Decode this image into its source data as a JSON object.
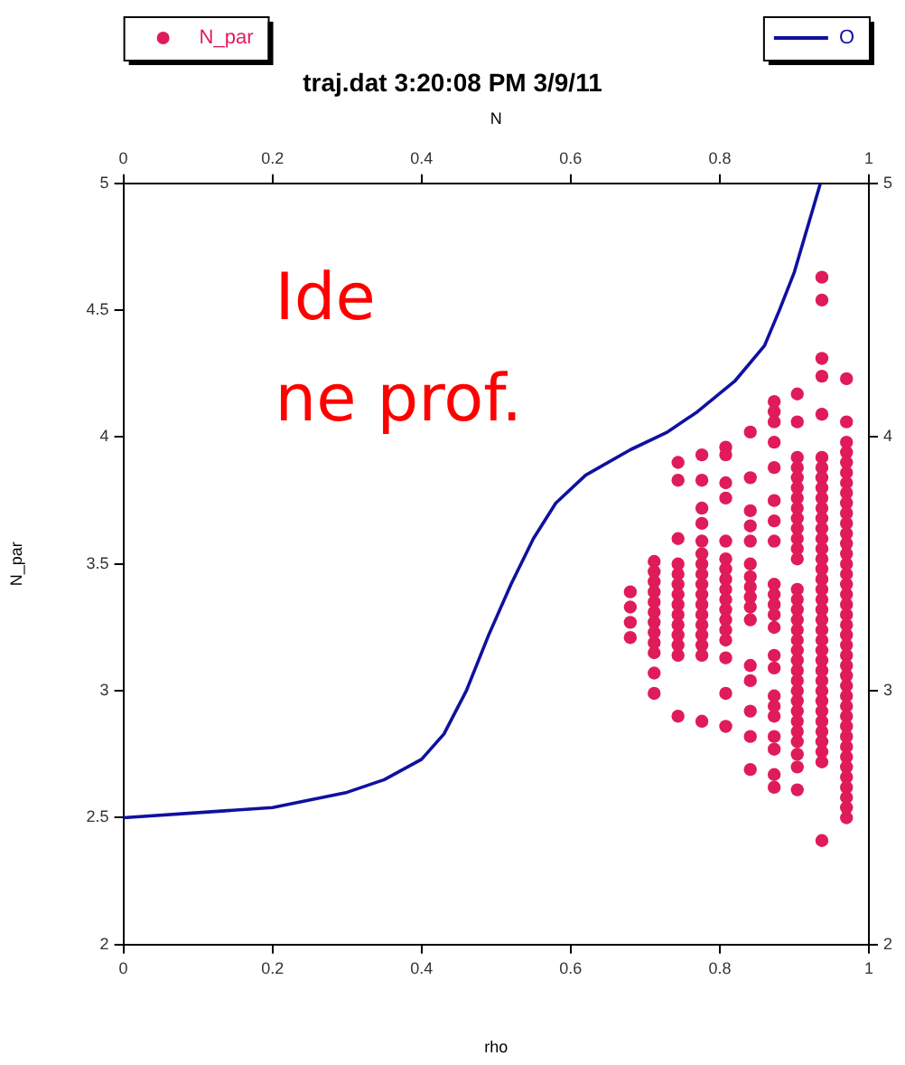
{
  "chart_data": {
    "type": "scatter",
    "title": "traj.dat 3:20:08 PM 3/9/11",
    "xlabel": "rho",
    "x2label": "N",
    "ylabel": "N_par",
    "xlim": [
      0,
      1
    ],
    "xticks": [
      0,
      0.2,
      0.4,
      0.6,
      0.8,
      1
    ],
    "x2lim": [
      0,
      1
    ],
    "x2ticks": [
      0,
      0.2,
      0.4,
      0.6,
      0.8,
      1
    ],
    "ylim": [
      2,
      5
    ],
    "yticks": [
      2,
      2.5,
      3,
      3.5,
      4,
      4.5,
      5
    ],
    "y2lim": [
      2,
      5
    ],
    "y2ticks": [
      2,
      3,
      4,
      5
    ],
    "grid": false,
    "legend": "top",
    "annotations": [
      "Ide",
      "ne prof."
    ],
    "series": [
      {
        "type": "scatter",
        "name": "N_par",
        "color": "#e01b5a",
        "marker": "circle",
        "x": [
          0.68,
          0.68,
          0.68,
          0.68,
          0.712,
          0.712,
          0.712,
          0.712,
          0.712,
          0.712,
          0.712,
          0.712,
          0.712,
          0.712,
          0.712,
          0.712,
          0.744,
          0.744,
          0.744,
          0.744,
          0.744,
          0.744,
          0.744,
          0.744,
          0.744,
          0.744,
          0.744,
          0.744,
          0.744,
          0.744,
          0.776,
          0.776,
          0.776,
          0.776,
          0.776,
          0.776,
          0.776,
          0.776,
          0.776,
          0.776,
          0.776,
          0.776,
          0.776,
          0.776,
          0.776,
          0.776,
          0.776,
          0.808,
          0.808,
          0.808,
          0.808,
          0.808,
          0.808,
          0.808,
          0.808,
          0.808,
          0.808,
          0.808,
          0.808,
          0.808,
          0.808,
          0.808,
          0.808,
          0.808,
          0.841,
          0.841,
          0.841,
          0.841,
          0.841,
          0.841,
          0.841,
          0.841,
          0.841,
          0.841,
          0.841,
          0.841,
          0.841,
          0.841,
          0.841,
          0.841,
          0.873,
          0.873,
          0.873,
          0.873,
          0.873,
          0.873,
          0.873,
          0.873,
          0.873,
          0.873,
          0.873,
          0.873,
          0.873,
          0.873,
          0.873,
          0.873,
          0.873,
          0.873,
          0.873,
          0.873,
          0.873,
          0.873,
          0.904,
          0.904,
          0.904,
          0.904,
          0.904,
          0.904,
          0.904,
          0.904,
          0.904,
          0.904,
          0.904,
          0.904,
          0.904,
          0.904,
          0.904,
          0.904,
          0.904,
          0.904,
          0.904,
          0.904,
          0.904,
          0.904,
          0.904,
          0.904,
          0.904,
          0.904,
          0.904,
          0.904,
          0.904,
          0.904,
          0.904,
          0.904,
          0.937,
          0.937,
          0.937,
          0.937,
          0.937,
          0.937,
          0.937,
          0.937,
          0.937,
          0.937,
          0.937,
          0.937,
          0.937,
          0.937,
          0.937,
          0.937,
          0.937,
          0.937,
          0.937,
          0.937,
          0.937,
          0.937,
          0.937,
          0.937,
          0.937,
          0.937,
          0.937,
          0.937,
          0.937,
          0.937,
          0.937,
          0.937,
          0.937,
          0.937,
          0.937,
          0.937,
          0.937,
          0.97,
          0.97,
          0.97,
          0.97,
          0.97,
          0.97,
          0.97,
          0.97,
          0.97,
          0.97,
          0.97,
          0.97,
          0.97,
          0.97,
          0.97,
          0.97,
          0.97,
          0.97,
          0.97,
          0.97,
          0.97,
          0.97,
          0.97,
          0.97,
          0.97,
          0.97,
          0.97,
          0.97,
          0.97,
          0.97,
          0.97,
          0.97,
          0.97,
          0.97,
          0.97,
          0.97,
          0.97,
          0.97,
          0.97,
          0.97
        ],
        "values": [
          3.39,
          3.33,
          3.27,
          3.21,
          3.51,
          3.47,
          3.43,
          3.39,
          3.35,
          3.31,
          3.27,
          3.23,
          3.19,
          3.15,
          3.07,
          2.99,
          3.9,
          3.83,
          3.6,
          3.5,
          3.46,
          3.42,
          3.38,
          3.34,
          3.3,
          3.26,
          3.22,
          3.18,
          3.14,
          2.9,
          3.93,
          3.83,
          3.72,
          3.66,
          3.59,
          3.54,
          3.5,
          3.46,
          3.42,
          3.38,
          3.34,
          3.3,
          3.26,
          3.22,
          3.18,
          3.14,
          2.88,
          3.96,
          3.93,
          3.82,
          3.76,
          3.59,
          3.52,
          3.48,
          3.44,
          3.4,
          3.36,
          3.32,
          3.28,
          3.24,
          3.2,
          3.13,
          2.99,
          2.86,
          4.02,
          3.84,
          3.71,
          3.65,
          3.59,
          3.5,
          3.45,
          3.41,
          3.37,
          3.33,
          3.28,
          3.1,
          3.04,
          2.92,
          2.82,
          2.69,
          4.14,
          4.1,
          4.06,
          3.98,
          3.88,
          3.75,
          3.67,
          3.59,
          3.42,
          3.38,
          3.34,
          3.3,
          3.25,
          3.14,
          3.09,
          2.98,
          2.94,
          2.9,
          2.82,
          2.77,
          2.67,
          2.62,
          4.17,
          4.06,
          3.92,
          3.88,
          3.84,
          3.8,
          3.76,
          3.72,
          3.68,
          3.64,
          3.6,
          3.56,
          3.52,
          3.4,
          3.36,
          3.32,
          3.28,
          3.24,
          3.2,
          3.16,
          3.12,
          3.08,
          3.04,
          3.0,
          2.96,
          2.92,
          2.88,
          2.84,
          2.8,
          2.75,
          2.7,
          2.61,
          4.63,
          4.54,
          4.31,
          4.24,
          4.09,
          3.92,
          3.88,
          3.84,
          3.8,
          3.76,
          3.72,
          3.68,
          3.64,
          3.6,
          3.56,
          3.52,
          3.48,
          3.44,
          3.4,
          3.36,
          3.32,
          3.28,
          3.24,
          3.2,
          3.16,
          3.12,
          3.08,
          3.04,
          3.0,
          2.96,
          2.92,
          2.88,
          2.84,
          2.8,
          2.76,
          2.72,
          2.41,
          4.23,
          4.06,
          3.98,
          3.94,
          3.9,
          3.86,
          3.82,
          3.78,
          3.74,
          3.7,
          3.66,
          3.62,
          3.58,
          3.54,
          3.5,
          3.46,
          3.42,
          3.38,
          3.34,
          3.3,
          3.26,
          3.22,
          3.18,
          3.14,
          3.1,
          3.06,
          3.02,
          2.98,
          2.94,
          2.9,
          2.86,
          2.82,
          2.78,
          2.74,
          2.7,
          2.66,
          2.62,
          2.58,
          2.54,
          2.5
        ]
      },
      {
        "type": "line",
        "name": "O",
        "color": "#1010a0",
        "marker": "none",
        "line_style": "solid",
        "x": [
          0,
          0.1,
          0.2,
          0.3,
          0.35,
          0.4,
          0.43,
          0.46,
          0.49,
          0.52,
          0.55,
          0.58,
          0.62,
          0.68,
          0.73,
          0.77,
          0.82,
          0.86,
          0.88,
          0.9,
          0.92,
          0.935
        ],
        "values": [
          2.5,
          2.52,
          2.54,
          2.6,
          2.65,
          2.73,
          2.83,
          3.0,
          3.22,
          3.42,
          3.6,
          3.74,
          3.85,
          3.95,
          4.02,
          4.1,
          4.22,
          4.36,
          4.5,
          4.65,
          4.85,
          5.0
        ]
      }
    ]
  }
}
